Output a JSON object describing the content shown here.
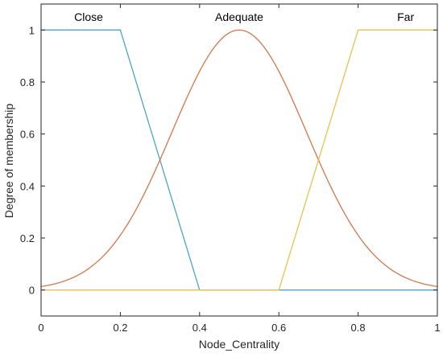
{
  "chart_data": {
    "type": "line",
    "title": "",
    "xlabel": "Node_Centrality",
    "ylabel": "Degree of membership",
    "xlim": [
      0,
      1
    ],
    "ylim": [
      -0.1,
      1.1
    ],
    "grid": false,
    "x_ticks": [
      0,
      0.2,
      0.4,
      0.6,
      0.8,
      1
    ],
    "x_tick_labels": [
      "0",
      "0.2",
      "0.4",
      "0.6",
      "0.8",
      "1"
    ],
    "y_ticks": [
      0,
      0.2,
      0.4,
      0.6,
      0.8,
      1
    ],
    "y_tick_labels": [
      "0",
      "0.2",
      "0.4",
      "0.6",
      "0.8",
      "1"
    ],
    "series": [
      {
        "name": "Close",
        "shape": "trapezoidal",
        "color": "#4aa6c4",
        "x": [
          0,
          0.2,
          0.4,
          1
        ],
        "y": [
          1,
          1,
          0,
          0
        ],
        "label_at": [
          0.12,
          1.05
        ]
      },
      {
        "name": "Adequate",
        "shape": "gaussian",
        "color": "#d4764a",
        "mean": 0.5,
        "sigma": 0.17,
        "label_at": [
          0.5,
          1.05
        ]
      },
      {
        "name": "Far",
        "shape": "trapezoidal",
        "color": "#e3c24f",
        "x": [
          0,
          0.6,
          0.8,
          1
        ],
        "y": [
          0,
          0,
          1,
          1
        ],
        "label_at": [
          0.92,
          1.05
        ]
      }
    ]
  }
}
